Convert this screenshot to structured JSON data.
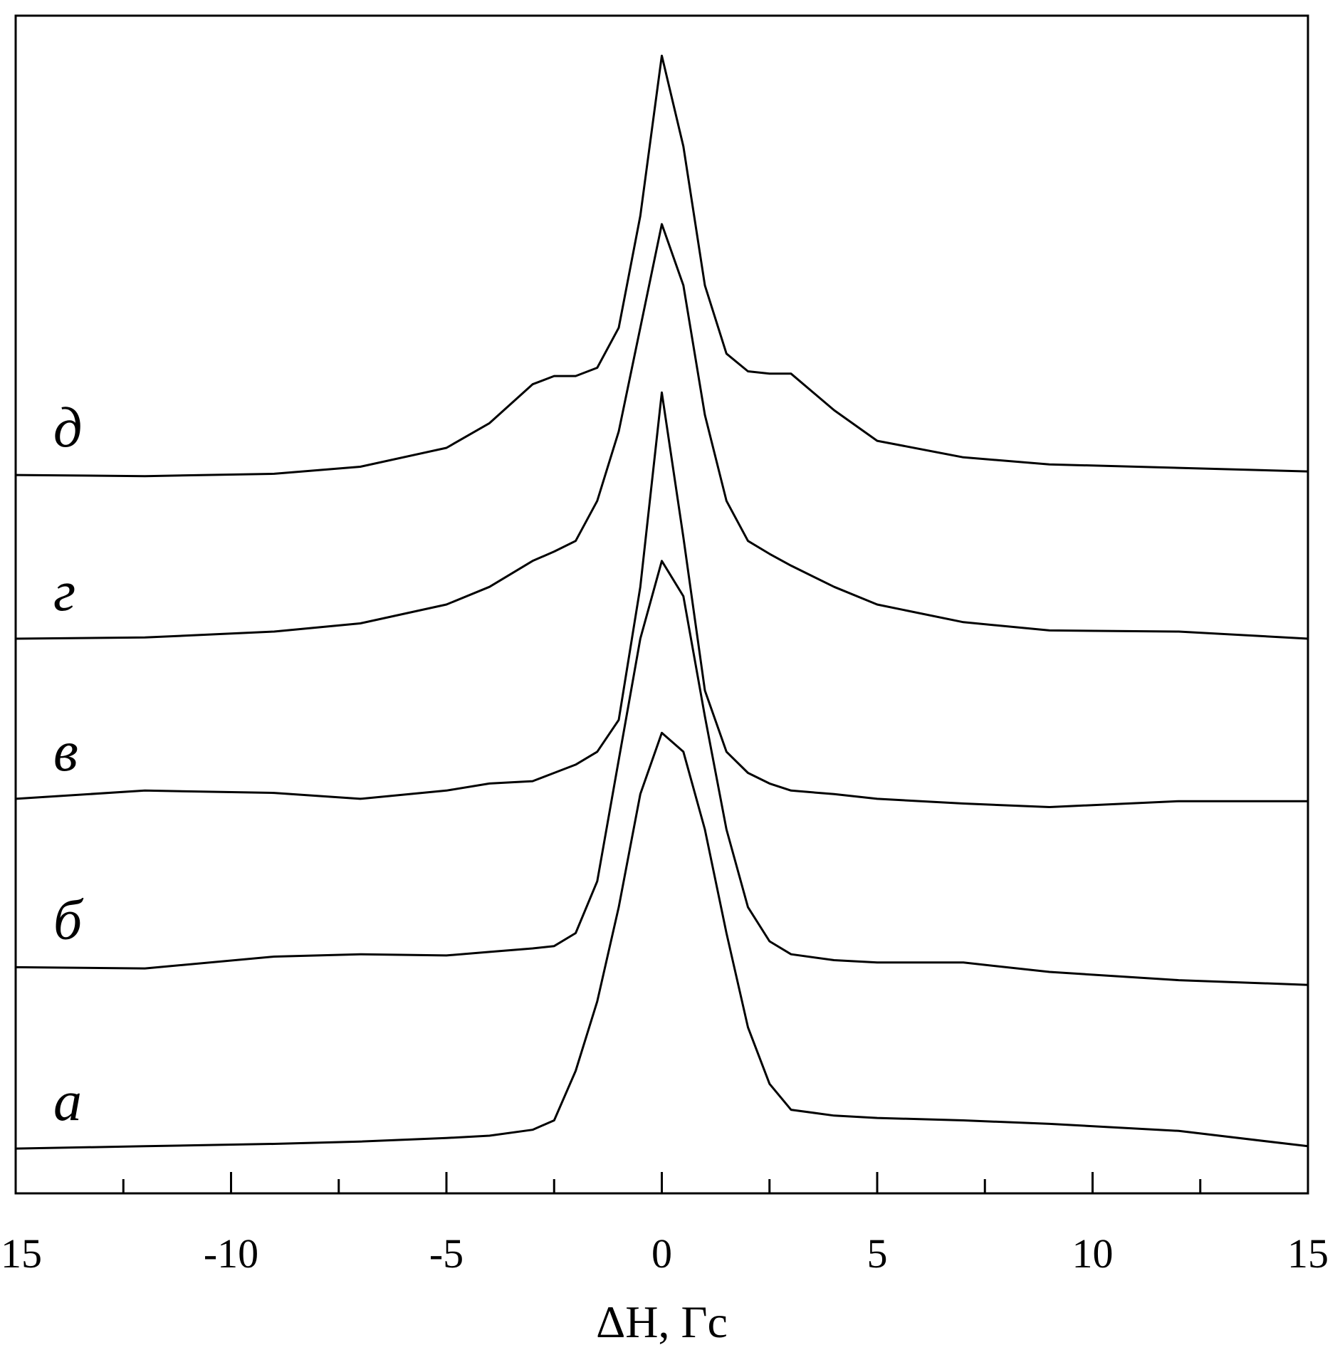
{
  "chart_data": {
    "type": "line",
    "x_label": "ΔH, Гс",
    "x": [
      -15,
      -12,
      -9,
      -7,
      -5,
      -4,
      -3,
      -2.5,
      -2,
      -1.5,
      -1,
      -0.5,
      0,
      0.5,
      1,
      1.5,
      2,
      2.5,
      3,
      4,
      5,
      7,
      9,
      12,
      15
    ],
    "series": [
      {
        "name": "а",
        "color": "#000000",
        "values": [
          3.8,
          4.0,
          4.2,
          4.4,
          4.7,
          4.9,
          5.4,
          6.2,
          10.4,
          16.3,
          24.3,
          33.9,
          39.1,
          37.5,
          30.9,
          22.1,
          14.1,
          9.3,
          7.1,
          6.6,
          6.4,
          6.2,
          5.9,
          5.3,
          4.0
        ]
      },
      {
        "name": "б",
        "color": "#000000",
        "values": [
          19.2,
          19.1,
          20.1,
          20.3,
          20.2,
          20.5,
          20.8,
          21.0,
          22.1,
          26.5,
          36.8,
          47.1,
          53.7,
          50.7,
          40.5,
          30.9,
          24.3,
          21.4,
          20.3,
          19.8,
          19.6,
          19.6,
          18.8,
          18.1,
          17.7
        ]
      },
      {
        "name": "в",
        "color": "#000000",
        "values": [
          33.5,
          34.2,
          34.0,
          33.5,
          34.2,
          34.8,
          35.0,
          35.7,
          36.4,
          37.5,
          40.2,
          51.5,
          68.0,
          55.7,
          42.7,
          37.5,
          35.7,
          34.8,
          34.2,
          33.9,
          33.5,
          33.1,
          32.8,
          33.3,
          33.3
        ]
      },
      {
        "name": "г",
        "color": "#000000",
        "values": [
          47.1,
          47.2,
          47.7,
          48.4,
          50.0,
          51.5,
          53.7,
          54.5,
          55.4,
          58.8,
          64.7,
          73.5,
          82.3,
          77.1,
          66.1,
          58.8,
          55.4,
          54.3,
          53.3,
          51.5,
          50.0,
          48.5,
          47.8,
          47.7,
          47.1
        ]
      },
      {
        "name": "д",
        "color": "#000000",
        "values": [
          61.0,
          60.9,
          61.1,
          61.7,
          63.3,
          65.4,
          68.7,
          69.4,
          69.4,
          70.1,
          73.5,
          83.0,
          96.6,
          88.9,
          77.1,
          71.3,
          69.8,
          69.6,
          69.6,
          66.5,
          63.9,
          62.5,
          61.9,
          61.6,
          61.3
        ]
      }
    ],
    "xlim": [
      -15,
      15
    ],
    "ylim": [
      0,
      100
    ],
    "xticks": [
      {
        "value": -15,
        "label": "15"
      },
      -10,
      -5,
      0,
      5,
      10,
      15
    ],
    "xminorticks": [
      -12.5,
      -7.5,
      -2.5,
      2.5,
      7.5,
      12.5
    ]
  }
}
